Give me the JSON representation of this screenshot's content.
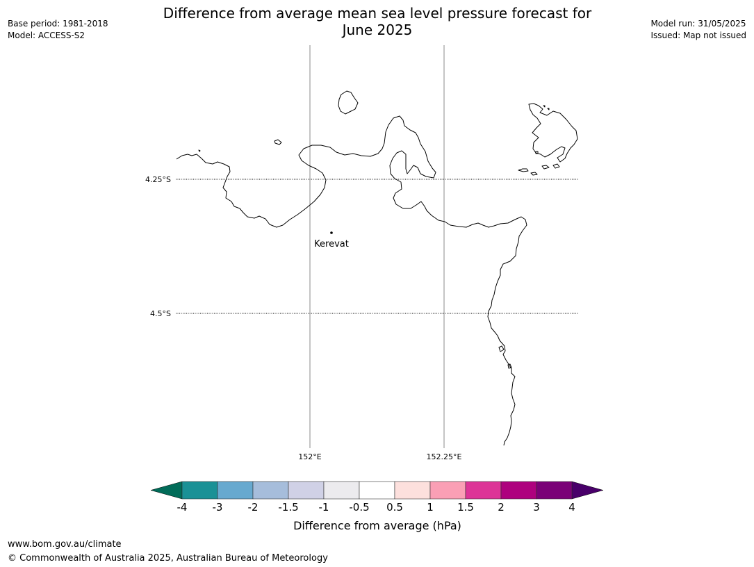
{
  "title": "Difference from average mean sea level pressure forecast for June 2025",
  "title_line1": "Difference from average mean sea level pressure forecast for",
  "title_line2": "June 2025",
  "meta_left": [
    "Base period: 1981-2018",
    "Model: ACCESS-S2"
  ],
  "meta_right": [
    "Model run: 31/05/2025",
    "Issued: Map not issued"
  ],
  "map": {
    "lat_labels": [
      "4.25°S",
      "4.5°S"
    ],
    "lon_labels": [
      "152°E",
      "152.25°E"
    ],
    "place": "Kerevat",
    "coastline_color": "#000000",
    "graticule_meridian_color": "#888888"
  },
  "colorbar": {
    "label": "Difference from average (hPa)",
    "ticks": [
      "-4",
      "-3",
      "-2",
      "-1.5",
      "-1",
      "-0.5",
      "0.5",
      "1",
      "1.5",
      "2",
      "3",
      "4"
    ],
    "colors": [
      "#1a9196",
      "#67a9cf",
      "#a6bddb",
      "#d0d1e6",
      "#ecebee",
      "#ffffff",
      "#fde0dd",
      "#fa9fb5",
      "#dd3497",
      "#ae017e",
      "#7a0177"
    ],
    "extend_low_color": "#016c59",
    "extend_high_color": "#49006a"
  },
  "footer": {
    "url": "www.bom.gov.au/climate",
    "copyright": "© Commonwealth of Australia 2025, Australian Bureau of Meteorology"
  }
}
